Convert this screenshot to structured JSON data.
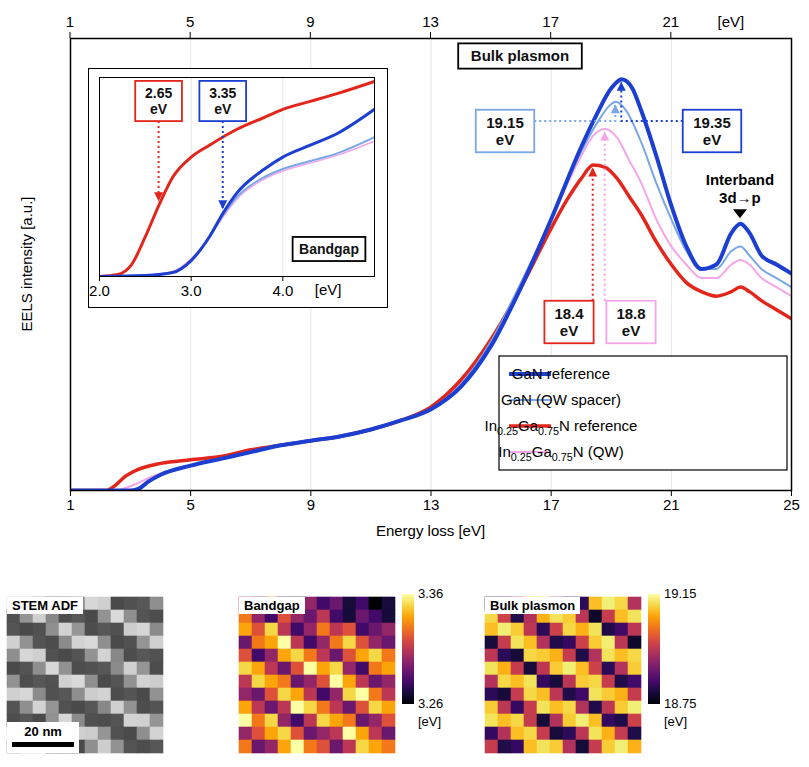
{
  "chart_data": [
    {
      "type": "line",
      "x_label": "Energy loss [eV]",
      "y_label": "EELS intensity [a.u.]",
      "xlim": [
        1,
        25
      ],
      "xticks": [
        1,
        5,
        9,
        13,
        17,
        21,
        25
      ],
      "top_axis": {
        "ticks": [
          1,
          5,
          9,
          13,
          17,
          21
        ],
        "label": "[eV]"
      },
      "ylim": [
        0,
        1
      ],
      "grid": true,
      "tick_labels": "x",
      "legend": "bottom-right",
      "series": [
        {
          "name": "GaN reference",
          "color": "#1c3fd1",
          "x": [
            1,
            3,
            3.3,
            3.6,
            4,
            5,
            6,
            7,
            8,
            9,
            10,
            11,
            12,
            13,
            14,
            15,
            16,
            17,
            18,
            18.5,
            19,
            19.35,
            19.7,
            20,
            20.5,
            21,
            21.5,
            22,
            22.5,
            23,
            23.3,
            23.6,
            24,
            24.5,
            25
          ],
          "values": [
            0,
            0,
            0.005,
            0.02,
            0.035,
            0.055,
            0.07,
            0.085,
            0.1,
            0.11,
            0.12,
            0.135,
            0.155,
            0.18,
            0.23,
            0.32,
            0.45,
            0.6,
            0.76,
            0.83,
            0.89,
            0.91,
            0.89,
            0.84,
            0.74,
            0.63,
            0.54,
            0.49,
            0.5,
            0.57,
            0.59,
            0.57,
            0.52,
            0.5,
            0.48
          ]
        },
        {
          "name": "GaN (QW spacer)",
          "color": "#7aa7e6",
          "x": [
            1,
            3,
            3.3,
            3.6,
            4,
            5,
            6,
            7,
            8,
            9,
            10,
            11,
            12,
            13,
            14,
            15,
            16,
            17,
            18,
            18.5,
            19,
            19.15,
            19.5,
            20,
            20.5,
            21,
            21.5,
            22,
            22.5,
            23,
            23.3,
            23.6,
            24,
            24.5,
            25
          ],
          "values": [
            0,
            0,
            0.005,
            0.02,
            0.035,
            0.055,
            0.07,
            0.085,
            0.1,
            0.11,
            0.12,
            0.135,
            0.155,
            0.18,
            0.235,
            0.33,
            0.46,
            0.6,
            0.75,
            0.81,
            0.855,
            0.86,
            0.84,
            0.77,
            0.68,
            0.6,
            0.53,
            0.49,
            0.49,
            0.53,
            0.54,
            0.52,
            0.49,
            0.47,
            0.45
          ]
        },
        {
          "name": "In0.25Ga0.75N reference",
          "color": "#e3261b",
          "x": [
            1,
            2.2,
            2.5,
            2.8,
            3.2,
            4,
            5,
            6,
            7,
            8,
            9,
            10,
            11,
            12,
            13,
            14,
            15,
            16,
            17,
            17.5,
            18,
            18.4,
            18.8,
            19.2,
            19.6,
            20,
            20.5,
            21,
            21.5,
            22,
            22.5,
            23,
            23.3,
            23.6,
            24,
            24.5,
            25
          ],
          "values": [
            0,
            0,
            0.012,
            0.03,
            0.045,
            0.06,
            0.068,
            0.075,
            0.09,
            0.1,
            0.11,
            0.12,
            0.135,
            0.155,
            0.185,
            0.245,
            0.335,
            0.45,
            0.58,
            0.64,
            0.69,
            0.72,
            0.715,
            0.69,
            0.65,
            0.61,
            0.55,
            0.5,
            0.46,
            0.44,
            0.43,
            0.44,
            0.45,
            0.44,
            0.42,
            0.4,
            0.38
          ]
        },
        {
          "name": "In0.25Ga0.75N (QW)",
          "color": "#f4a6e8",
          "x": [
            1,
            2.5,
            2.8,
            3.2,
            3.6,
            4,
            5,
            6,
            7,
            8,
            9,
            10,
            11,
            12,
            13,
            14,
            15,
            16,
            17,
            18,
            18.4,
            18.8,
            19.2,
            19.6,
            20,
            20.5,
            21,
            21.5,
            22,
            22.5,
            23,
            23.3,
            23.6,
            24,
            24.5,
            25
          ],
          "values": [
            0,
            0,
            0.005,
            0.015,
            0.028,
            0.038,
            0.056,
            0.07,
            0.085,
            0.1,
            0.11,
            0.12,
            0.135,
            0.155,
            0.18,
            0.235,
            0.33,
            0.46,
            0.6,
            0.74,
            0.785,
            0.8,
            0.78,
            0.73,
            0.68,
            0.6,
            0.54,
            0.5,
            0.47,
            0.47,
            0.5,
            0.51,
            0.5,
            0.47,
            0.45,
            0.43
          ]
        }
      ],
      "annotations": [
        {
          "text": "Bulk plasmon"
        },
        {
          "text": "19.15 eV",
          "x": 19.15,
          "color": "#7aa7e6"
        },
        {
          "text": "19.35 eV",
          "x": 19.35,
          "color": "#1c3fd1"
        },
        {
          "text": "18.4 eV",
          "x": 18.4,
          "color": "#e3261b"
        },
        {
          "text": "18.8 eV",
          "x": 18.8,
          "color": "#f4a6e8"
        },
        {
          "text": "Interband 3d→p",
          "x": 23.3
        }
      ]
    },
    {
      "type": "line",
      "x_label": "[eV]",
      "xlim": [
        2,
        5
      ],
      "xticks": [
        2,
        3,
        4
      ],
      "ylim": [
        0,
        1
      ],
      "grid": true,
      "tick_labels": "x",
      "series": [
        {
          "color": "#1c3fd1",
          "x": [
            2,
            2.5,
            2.8,
            3,
            3.2,
            3.35,
            3.5,
            3.8,
            4,
            4.3,
            4.6,
            5
          ],
          "values": [
            0,
            0.005,
            0.02,
            0.08,
            0.2,
            0.32,
            0.42,
            0.54,
            0.6,
            0.66,
            0.72,
            0.84
          ]
        },
        {
          "color": "#7aa7e6",
          "x": [
            2,
            2.5,
            2.8,
            3,
            3.2,
            3.35,
            3.5,
            3.8,
            4,
            4.3,
            4.6,
            5
          ],
          "values": [
            0,
            0.005,
            0.02,
            0.08,
            0.2,
            0.31,
            0.4,
            0.5,
            0.54,
            0.58,
            0.62,
            0.7
          ]
        },
        {
          "color": "#e3261b",
          "x": [
            2,
            2.2,
            2.35,
            2.5,
            2.65,
            2.8,
            3,
            3.2,
            3.5,
            3.8,
            4,
            4.3,
            4.6,
            5
          ],
          "values": [
            0,
            0.01,
            0.06,
            0.2,
            0.36,
            0.5,
            0.6,
            0.66,
            0.74,
            0.8,
            0.84,
            0.88,
            0.92,
            0.98
          ]
        },
        {
          "color": "#f4a6e8",
          "x": [
            2,
            2.5,
            2.8,
            3,
            3.2,
            3.35,
            3.5,
            3.8,
            4,
            4.3,
            4.6,
            5
          ],
          "values": [
            0,
            0.005,
            0.025,
            0.09,
            0.2,
            0.3,
            0.39,
            0.49,
            0.53,
            0.57,
            0.61,
            0.68
          ]
        }
      ],
      "annotations": [
        {
          "text": "2.65 eV",
          "x": 2.65,
          "color": "#e3261b"
        },
        {
          "text": "3.35 eV",
          "x": 3.35,
          "color": "#1c3fd1"
        },
        {
          "text": "Bandgap"
        }
      ]
    },
    {
      "type": "heatmap",
      "title": "STEM ADF",
      "tick_labels": false,
      "extent": 52,
      "scale_bar": {
        "label": "20 nm",
        "length": 20
      },
      "cells": [
        [
          0.81,
          0.79,
          0.61,
          0.4,
          0.42,
          0.59,
          0.82,
          0.8,
          0.39,
          0.41,
          0.43,
          0.6
        ],
        [
          0.41,
          0.62,
          0.8,
          0.58,
          0.4,
          0.43,
          0.39,
          0.61,
          0.83,
          0.6,
          0.42,
          0.4
        ],
        [
          0.42,
          0.39,
          0.41,
          0.6,
          0.81,
          0.62,
          0.4,
          0.43,
          0.41,
          0.79,
          0.82,
          0.59
        ],
        [
          0.8,
          0.61,
          0.42,
          0.4,
          0.59,
          0.81,
          0.83,
          0.6,
          0.39,
          0.41,
          0.62,
          0.8
        ],
        [
          0.6,
          0.82,
          0.8,
          0.41,
          0.39,
          0.42,
          0.61,
          0.81,
          0.58,
          0.4,
          0.43,
          0.41
        ],
        [
          0.39,
          0.42,
          0.6,
          0.82,
          0.61,
          0.4,
          0.41,
          0.43,
          0.59,
          0.8,
          0.62,
          0.4
        ],
        [
          0.61,
          0.4,
          0.43,
          0.41,
          0.8,
          0.83,
          0.6,
          0.39,
          0.42,
          0.61,
          0.81,
          0.79
        ],
        [
          0.8,
          0.82,
          0.59,
          0.41,
          0.43,
          0.6,
          0.79,
          0.81,
          0.4,
          0.42,
          0.39,
          0.61
        ],
        [
          0.42,
          0.6,
          0.81,
          0.62,
          0.41,
          0.39,
          0.43,
          0.58,
          0.8,
          0.61,
          0.4,
          0.42
        ],
        [
          0.4,
          0.43,
          0.39,
          0.61,
          0.82,
          0.59,
          0.41,
          0.4,
          0.42,
          0.81,
          0.8,
          0.62
        ],
        [
          0.82,
          0.59,
          0.4,
          0.43,
          0.61,
          0.8,
          0.79,
          0.62,
          0.41,
          0.39,
          0.6,
          0.81
        ],
        [
          0.59,
          0.8,
          0.83,
          0.4,
          0.42,
          0.39,
          0.6,
          0.79,
          0.61,
          0.42,
          0.4,
          0.43
        ]
      ]
    },
    {
      "type": "heatmap",
      "title": "Bandgap",
      "tick_labels": false,
      "color_range": [
        3.26,
        3.36
      ],
      "color_ticks": [
        3.26,
        3.36
      ],
      "color_label": "[eV]",
      "cells": [
        [
          3.31,
          3.29,
          3.33,
          3.28,
          3.27,
          3.3,
          3.28,
          3.29,
          3.27,
          3.28,
          3.26,
          3.27
        ],
        [
          3.33,
          3.3,
          3.28,
          3.32,
          3.3,
          3.29,
          3.31,
          3.28,
          3.27,
          3.29,
          3.28,
          3.27
        ],
        [
          3.34,
          3.32,
          3.35,
          3.31,
          3.28,
          3.3,
          3.33,
          3.31,
          3.32,
          3.28,
          3.29,
          3.3
        ],
        [
          3.29,
          3.33,
          3.34,
          3.36,
          3.31,
          3.28,
          3.3,
          3.33,
          3.35,
          3.32,
          3.3,
          3.29
        ],
        [
          3.32,
          3.28,
          3.3,
          3.34,
          3.35,
          3.33,
          3.31,
          3.29,
          3.32,
          3.34,
          3.35,
          3.33
        ],
        [
          3.35,
          3.34,
          3.31,
          3.29,
          3.32,
          3.36,
          3.34,
          3.35,
          3.3,
          3.28,
          3.33,
          3.34
        ],
        [
          3.31,
          3.35,
          3.34,
          3.33,
          3.29,
          3.3,
          3.32,
          3.36,
          3.34,
          3.31,
          3.29,
          3.3
        ],
        [
          3.3,
          3.29,
          3.32,
          3.35,
          3.34,
          3.31,
          3.28,
          3.3,
          3.35,
          3.36,
          3.33,
          3.31
        ],
        [
          3.34,
          3.31,
          3.29,
          3.31,
          3.36,
          3.35,
          3.33,
          3.31,
          3.29,
          3.32,
          3.35,
          3.34
        ],
        [
          3.36,
          3.33,
          3.35,
          3.3,
          3.28,
          3.31,
          3.35,
          3.34,
          3.33,
          3.29,
          3.3,
          3.32
        ],
        [
          3.3,
          3.32,
          3.34,
          3.35,
          3.32,
          3.29,
          3.3,
          3.31,
          3.36,
          3.34,
          3.31,
          3.29
        ],
        [
          3.33,
          3.29,
          3.3,
          3.34,
          3.36,
          3.33,
          3.32,
          3.29,
          3.31,
          3.35,
          3.34,
          3.33
        ]
      ]
    },
    {
      "type": "heatmap",
      "title": "Bulk plasmon",
      "tick_labels": false,
      "color_range": [
        18.75,
        19.15
      ],
      "color_ticks": [
        18.75,
        19.15
      ],
      "color_label": "[eV]",
      "cells": [
        [
          18.8,
          18.82,
          18.95,
          19.1,
          19.12,
          18.96,
          18.79,
          18.81,
          19.09,
          19.13,
          19.11,
          18.94
        ],
        [
          19.11,
          18.97,
          18.8,
          18.94,
          19.08,
          19.12,
          19.1,
          18.95,
          18.78,
          18.96,
          19.09,
          19.12
        ],
        [
          19.09,
          19.13,
          19.1,
          18.95,
          18.81,
          18.97,
          19.11,
          19.08,
          19.12,
          18.8,
          18.83,
          18.95
        ],
        [
          18.79,
          18.96,
          19.12,
          19.09,
          18.94,
          18.8,
          18.82,
          18.97,
          19.1,
          19.13,
          18.95,
          18.78
        ],
        [
          18.95,
          18.81,
          18.79,
          19.11,
          19.1,
          19.08,
          18.96,
          18.8,
          18.94,
          19.12,
          19.09,
          19.11
        ],
        [
          19.12,
          19.08,
          18.96,
          18.79,
          18.95,
          19.1,
          19.13,
          19.09,
          18.97,
          18.81,
          18.94,
          19.1
        ],
        [
          18.94,
          19.11,
          19.09,
          19.12,
          18.82,
          18.79,
          18.95,
          19.1,
          19.11,
          18.96,
          18.8,
          18.83
        ],
        [
          18.81,
          18.79,
          18.96,
          19.11,
          19.09,
          18.95,
          18.8,
          18.83,
          19.12,
          19.1,
          19.08,
          18.96
        ],
        [
          19.1,
          18.95,
          18.82,
          18.96,
          19.12,
          19.09,
          19.11,
          18.94,
          18.8,
          18.95,
          19.1,
          19.13
        ],
        [
          19.12,
          19.09,
          19.11,
          18.96,
          18.79,
          18.94,
          19.1,
          19.13,
          19.09,
          18.82,
          18.8,
          18.97
        ],
        [
          18.82,
          18.94,
          19.09,
          19.11,
          18.96,
          18.79,
          18.81,
          18.95,
          19.12,
          19.08,
          18.96,
          18.8
        ],
        [
          18.96,
          18.8,
          18.82,
          19.09,
          19.12,
          19.1,
          18.94,
          18.79,
          18.96,
          19.1,
          19.13,
          19.08
        ]
      ]
    }
  ]
}
